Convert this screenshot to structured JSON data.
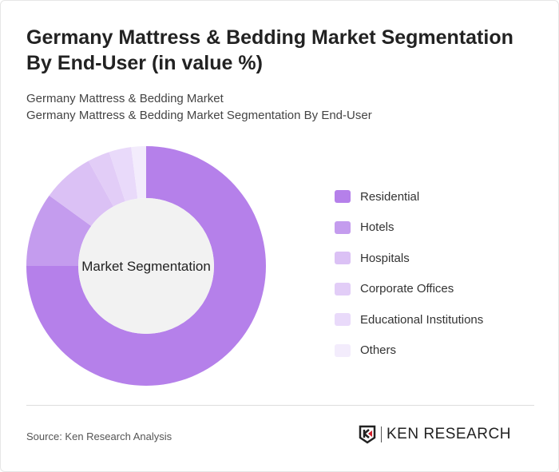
{
  "title": "Germany Mattress & Bedding Market Segmentation By End-User (in value %)",
  "subtitle1": "Germany Mattress & Bedding Market",
  "subtitle2": "Germany Mattress & Bedding Market Segmentation By End-User",
  "source": "Source: Ken Research Analysis",
  "logo": "KEN RESEARCH",
  "chart_data": {
    "type": "pie",
    "center_label": "Market Segmentation",
    "legend_position": "right",
    "categories": [
      "Residential",
      "Hotels",
      "Hospitals",
      "Corporate Offices",
      "Educational Institutions",
      "Others"
    ],
    "values": [
      75,
      10,
      7,
      3,
      3,
      2
    ],
    "colors": [
      "#b580ea",
      "#c49cee",
      "#dbc1f5",
      "#e2cdf7",
      "#e9dafa",
      "#f3ecfc"
    ]
  }
}
